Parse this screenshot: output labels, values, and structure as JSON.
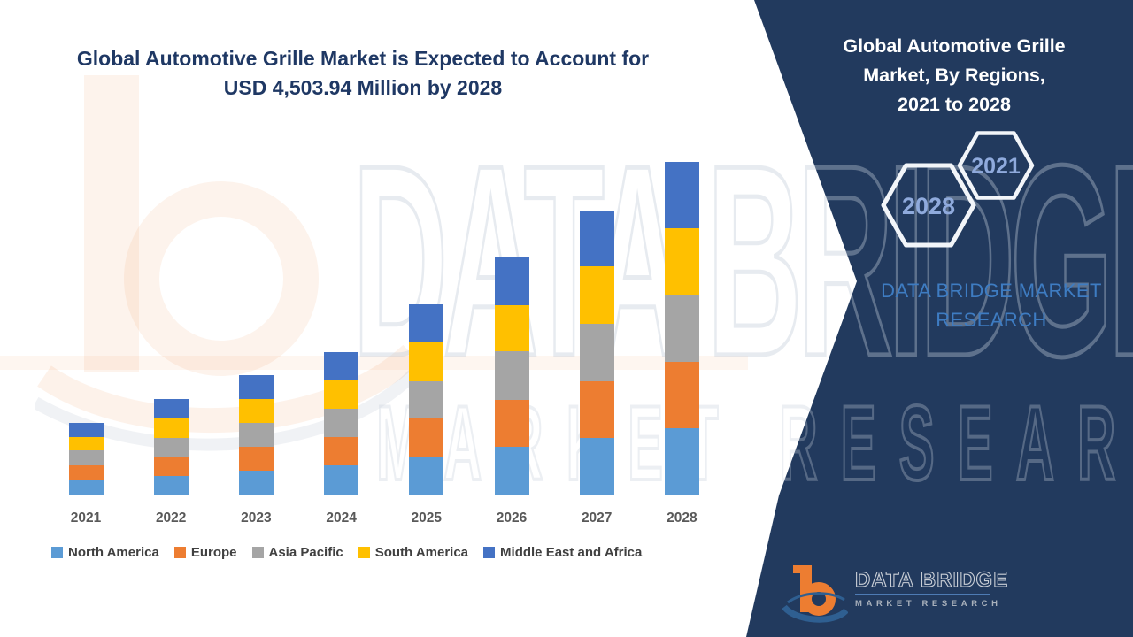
{
  "main_title": {
    "line1": "Global Automotive Grille Market is Expected to Account for",
    "line2": "USD 4,503.94 Million by 2028"
  },
  "panel": {
    "bg_color": "#223A5E",
    "title_lines": [
      "Global Automotive Grille",
      "Market, By Regions,",
      "2021 to 2028"
    ],
    "hexagon_small_label": "2021",
    "hexagon_large_label": "2028",
    "watermark_line1": "DATA BRIDGE MARKET",
    "watermark_line2": "RESEARCH",
    "logo": {
      "name": "DATA BRIDGE",
      "subtitle": "MARKET RESEARCH"
    }
  },
  "background_watermark": {
    "line1": "DATA BRIDGE",
    "line2": "MARKET RESEARCH"
  },
  "chart_data": {
    "type": "bar",
    "stacked": true,
    "title": "Global Automotive Grille Market is Expected to Account for USD 4,503.94 Million by 2028",
    "unit": "USD Million",
    "highlight_total_2028": 4503.94,
    "categories": [
      "2021",
      "2022",
      "2023",
      "2024",
      "2025",
      "2026",
      "2027",
      "2028"
    ],
    "series": [
      {
        "name": "North America",
        "color": "#5B9BD5",
        "values": [
          204,
          252,
          323,
          395,
          515,
          647,
          767,
          898
        ]
      },
      {
        "name": "Europe",
        "color": "#ED7D31",
        "values": [
          192,
          264,
          323,
          383,
          527,
          635,
          767,
          898
        ]
      },
      {
        "name": "Asia Pacific",
        "color": "#A5A5A5",
        "values": [
          204,
          252,
          323,
          383,
          491,
          659,
          779,
          911
        ]
      },
      {
        "name": "South America",
        "color": "#FFC000",
        "values": [
          180,
          275,
          323,
          383,
          527,
          623,
          779,
          898
        ]
      },
      {
        "name": "Middle East and Africa",
        "color": "#4472C4",
        "values": [
          192,
          252,
          323,
          383,
          515,
          659,
          755,
          899
        ]
      }
    ],
    "totals": [
      972,
      1295,
      1615,
      1927,
      2575,
      3223,
      3847,
      4504
    ],
    "ylim": [
      0,
      4600
    ],
    "y_axis_visible": false,
    "gridlines": false,
    "legend_position": "bottom"
  }
}
